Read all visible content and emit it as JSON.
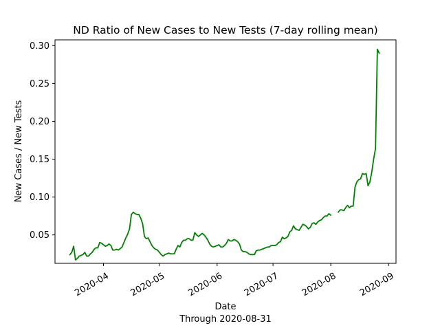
{
  "chart_data": {
    "type": "line",
    "title": "ND Ratio of New Cases to New Tests (7-day rolling mean)",
    "xlabel": "Date",
    "xlabel_note": "Through 2020-08-31",
    "ylabel": "New Cases / New Tests",
    "xlim": [
      "2020-03-06",
      "2020-09-05"
    ],
    "ylim": [
      0.0125,
      0.3075
    ],
    "grid": false,
    "x_ticks": [
      "2020-04-01",
      "2020-05-01",
      "2020-06-01",
      "2020-07-01",
      "2020-08-01",
      "2020-09-01"
    ],
    "x_tick_labels": [
      "2020-04",
      "2020-05",
      "2020-06",
      "2020-07",
      "2020-08",
      "2020-09"
    ],
    "y_ticks": [
      0.05,
      0.1,
      0.15,
      0.2,
      0.25,
      0.3
    ],
    "y_tick_labels": [
      "0.05",
      "0.10",
      "0.15",
      "0.20",
      "0.25",
      "0.30"
    ],
    "series": [
      {
        "color": "#008000",
        "segments": [
          [
            [
              "2020-03-14",
              0.024
            ],
            [
              "2020-03-15",
              0.027
            ],
            [
              "2020-03-16",
              0.035
            ],
            [
              "2020-03-17",
              0.017
            ],
            [
              "2020-03-18",
              0.019
            ],
            [
              "2020-03-19",
              0.022
            ],
            [
              "2020-03-20",
              0.023
            ],
            [
              "2020-03-21",
              0.024
            ],
            [
              "2020-03-22",
              0.027
            ],
            [
              "2020-03-23",
              0.022
            ],
            [
              "2020-03-24",
              0.022
            ],
            [
              "2020-03-25",
              0.025
            ],
            [
              "2020-03-26",
              0.027
            ],
            [
              "2020-03-27",
              0.031
            ],
            [
              "2020-03-28",
              0.033
            ],
            [
              "2020-03-29",
              0.033
            ],
            [
              "2020-03-30",
              0.04
            ],
            [
              "2020-03-31",
              0.039
            ],
            [
              "2020-04-01",
              0.037
            ],
            [
              "2020-04-02",
              0.035
            ],
            [
              "2020-04-03",
              0.036
            ],
            [
              "2020-04-04",
              0.038
            ],
            [
              "2020-04-05",
              0.036
            ],
            [
              "2020-04-06",
              0.03
            ],
            [
              "2020-04-07",
              0.03
            ],
            [
              "2020-04-08",
              0.031
            ],
            [
              "2020-04-09",
              0.03
            ],
            [
              "2020-04-10",
              0.032
            ],
            [
              "2020-04-11",
              0.034
            ],
            [
              "2020-04-12",
              0.04
            ],
            [
              "2020-04-13",
              0.046
            ],
            [
              "2020-04-14",
              0.051
            ],
            [
              "2020-04-15",
              0.058
            ],
            [
              "2020-04-16",
              0.077
            ],
            [
              "2020-04-17",
              0.08
            ],
            [
              "2020-04-18",
              0.078
            ],
            [
              "2020-04-19",
              0.077
            ],
            [
              "2020-04-20",
              0.077
            ],
            [
              "2020-04-21",
              0.072
            ],
            [
              "2020-04-22",
              0.065
            ],
            [
              "2020-04-23",
              0.048
            ],
            [
              "2020-04-24",
              0.045
            ],
            [
              "2020-04-25",
              0.046
            ],
            [
              "2020-04-26",
              0.041
            ],
            [
              "2020-04-27",
              0.036
            ],
            [
              "2020-04-28",
              0.033
            ],
            [
              "2020-04-29",
              0.031
            ],
            [
              "2020-04-30",
              0.03
            ],
            [
              "2020-05-01",
              0.027
            ],
            [
              "2020-05-02",
              0.024
            ],
            [
              "2020-05-03",
              0.022
            ],
            [
              "2020-05-04",
              0.024
            ],
            [
              "2020-05-05",
              0.025
            ],
            [
              "2020-05-06",
              0.026
            ],
            [
              "2020-05-07",
              0.025
            ],
            [
              "2020-05-08",
              0.025
            ],
            [
              "2020-05-09",
              0.025
            ],
            [
              "2020-05-10",
              0.031
            ],
            [
              "2020-05-11",
              0.036
            ],
            [
              "2020-05-12",
              0.034
            ],
            [
              "2020-05-13",
              0.04
            ],
            [
              "2020-05-14",
              0.043
            ],
            [
              "2020-05-15",
              0.043
            ],
            [
              "2020-05-16",
              0.045
            ],
            [
              "2020-05-17",
              0.045
            ],
            [
              "2020-05-18",
              0.043
            ],
            [
              "2020-05-19",
              0.043
            ],
            [
              "2020-05-20",
              0.053
            ],
            [
              "2020-05-21",
              0.05
            ],
            [
              "2020-05-22",
              0.048
            ],
            [
              "2020-05-23",
              0.05
            ],
            [
              "2020-05-24",
              0.052
            ],
            [
              "2020-05-25",
              0.05
            ],
            [
              "2020-05-26",
              0.047
            ],
            [
              "2020-05-27",
              0.043
            ],
            [
              "2020-05-28",
              0.038
            ],
            [
              "2020-05-29",
              0.035
            ],
            [
              "2020-05-30",
              0.034
            ],
            [
              "2020-05-31",
              0.035
            ],
            [
              "2020-06-01",
              0.036
            ],
            [
              "2020-06-02",
              0.037
            ],
            [
              "2020-06-03",
              0.034
            ],
            [
              "2020-06-04",
              0.034
            ],
            [
              "2020-06-05",
              0.036
            ],
            [
              "2020-06-06",
              0.039
            ],
            [
              "2020-06-07",
              0.044
            ],
            [
              "2020-06-08",
              0.042
            ],
            [
              "2020-06-09",
              0.042
            ],
            [
              "2020-06-10",
              0.044
            ],
            [
              "2020-06-11",
              0.043
            ],
            [
              "2020-06-12",
              0.041
            ],
            [
              "2020-06-13",
              0.038
            ],
            [
              "2020-06-14",
              0.03
            ],
            [
              "2020-06-15",
              0.028
            ],
            [
              "2020-06-16",
              0.028
            ],
            [
              "2020-06-17",
              0.027
            ],
            [
              "2020-06-18",
              0.025
            ],
            [
              "2020-06-19",
              0.024
            ],
            [
              "2020-06-20",
              0.024
            ],
            [
              "2020-06-21",
              0.024
            ],
            [
              "2020-06-22",
              0.029
            ],
            [
              "2020-06-23",
              0.03
            ],
            [
              "2020-06-24",
              0.03
            ],
            [
              "2020-06-25",
              0.031
            ],
            [
              "2020-06-26",
              0.032
            ],
            [
              "2020-06-27",
              0.033
            ],
            [
              "2020-06-28",
              0.034
            ],
            [
              "2020-06-29",
              0.034
            ],
            [
              "2020-06-30",
              0.036
            ],
            [
              "2020-07-01",
              0.036
            ],
            [
              "2020-07-02",
              0.036
            ],
            [
              "2020-07-03",
              0.037
            ],
            [
              "2020-07-04",
              0.04
            ],
            [
              "2020-07-05",
              0.041
            ],
            [
              "2020-07-06",
              0.047
            ],
            [
              "2020-07-07",
              0.045
            ],
            [
              "2020-07-08",
              0.046
            ],
            [
              "2020-07-09",
              0.048
            ],
            [
              "2020-07-10",
              0.054
            ],
            [
              "2020-07-11",
              0.056
            ],
            [
              "2020-07-12",
              0.062
            ],
            [
              "2020-07-13",
              0.058
            ],
            [
              "2020-07-14",
              0.057
            ],
            [
              "2020-07-15",
              0.056
            ],
            [
              "2020-07-16",
              0.06
            ],
            [
              "2020-07-17",
              0.064
            ],
            [
              "2020-07-18",
              0.063
            ],
            [
              "2020-07-19",
              0.061
            ],
            [
              "2020-07-20",
              0.058
            ],
            [
              "2020-07-21",
              0.06
            ],
            [
              "2020-07-22",
              0.065
            ],
            [
              "2020-07-23",
              0.066
            ],
            [
              "2020-07-24",
              0.064
            ],
            [
              "2020-07-25",
              0.067
            ],
            [
              "2020-07-26",
              0.069
            ],
            [
              "2020-07-27",
              0.07
            ],
            [
              "2020-07-28",
              0.073
            ],
            [
              "2020-07-29",
              0.075
            ],
            [
              "2020-07-30",
              0.075
            ],
            [
              "2020-07-31",
              0.078
            ],
            [
              "2020-08-01",
              0.076
            ]
          ],
          [
            [
              "2020-08-05",
              0.08
            ],
            [
              "2020-08-06",
              0.083
            ],
            [
              "2020-08-07",
              0.083
            ],
            [
              "2020-08-08",
              0.082
            ],
            [
              "2020-08-09",
              0.086
            ],
            [
              "2020-08-10",
              0.089
            ],
            [
              "2020-08-11",
              0.086
            ],
            [
              "2020-08-12",
              0.088
            ],
            [
              "2020-08-13",
              0.088
            ],
            [
              "2020-08-14",
              0.113
            ],
            [
              "2020-08-15",
              0.12
            ],
            [
              "2020-08-16",
              0.123
            ],
            [
              "2020-08-17",
              0.124
            ],
            [
              "2020-08-18",
              0.131
            ],
            [
              "2020-08-19",
              0.13
            ],
            [
              "2020-08-20",
              0.131
            ],
            [
              "2020-08-21",
              0.115
            ],
            [
              "2020-08-22",
              0.12
            ],
            [
              "2020-08-23",
              0.133
            ],
            [
              "2020-08-24",
              0.15
            ],
            [
              "2020-08-25",
              0.164
            ],
            [
              "2020-08-26",
              0.295
            ],
            [
              "2020-08-27",
              0.29
            ]
          ]
        ]
      }
    ]
  }
}
